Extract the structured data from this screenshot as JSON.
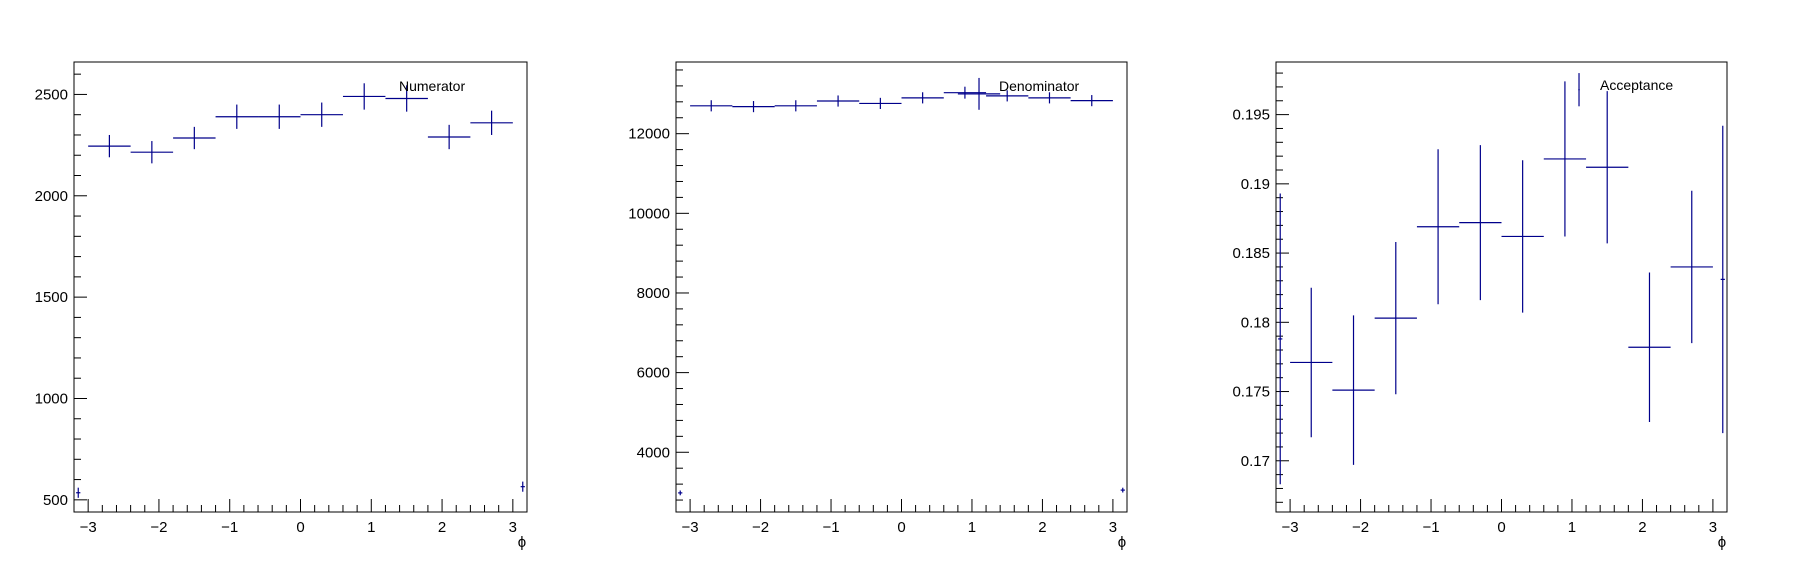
{
  "colors": {
    "marker": "#00008b",
    "frame": "#000000",
    "background": "#ffffff"
  },
  "chart_data": [
    {
      "type": "scatter",
      "title": "",
      "legend": "Numerator",
      "legend_position": "top-right",
      "xlabel": "ϕ",
      "ylabel": "",
      "grid": false,
      "xlim": [
        -3.2,
        3.2
      ],
      "ylim": [
        440,
        2660
      ],
      "x_ticks": [
        -3,
        -2,
        -1,
        0,
        1,
        2,
        3
      ],
      "x_tick_labels": [
        "−3",
        "−2",
        "−1",
        "0",
        "1",
        "2",
        "3"
      ],
      "y_ticks": [
        500,
        1000,
        1500,
        2000,
        2500
      ],
      "y_tick_labels": [
        "500",
        "1000",
        "1500",
        "2000",
        "2500"
      ],
      "points": [
        {
          "x": -3.14,
          "xerr": 0.03,
          "y": 535,
          "yerr": 25
        },
        {
          "x": -2.7,
          "xerr": 0.3,
          "y": 2245,
          "yerr": 55
        },
        {
          "x": -2.1,
          "xerr": 0.3,
          "y": 2215,
          "yerr": 55
        },
        {
          "x": -1.5,
          "xerr": 0.3,
          "y": 2285,
          "yerr": 55
        },
        {
          "x": -0.9,
          "xerr": 0.3,
          "y": 2390,
          "yerr": 60
        },
        {
          "x": -0.3,
          "xerr": 0.3,
          "y": 2390,
          "yerr": 60
        },
        {
          "x": 0.3,
          "xerr": 0.3,
          "y": 2400,
          "yerr": 60
        },
        {
          "x": 0.9,
          "xerr": 0.3,
          "y": 2490,
          "yerr": 65
        },
        {
          "x": 1.5,
          "xerr": 0.3,
          "y": 2480,
          "yerr": 65
        },
        {
          "x": 2.1,
          "xerr": 0.3,
          "y": 2290,
          "yerr": 60
        },
        {
          "x": 2.7,
          "xerr": 0.3,
          "y": 2360,
          "yerr": 60
        },
        {
          "x": 3.14,
          "xerr": 0.03,
          "y": 565,
          "yerr": 25
        }
      ]
    },
    {
      "type": "scatter",
      "title": "",
      "legend": "Denominator",
      "legend_position": "top-right",
      "xlabel": "ϕ",
      "ylabel": "",
      "grid": false,
      "xlim": [
        -3.2,
        3.2
      ],
      "ylim": [
        2500,
        13800
      ],
      "x_ticks": [
        -3,
        -2,
        -1,
        0,
        1,
        2,
        3
      ],
      "x_tick_labels": [
        "−3",
        "−2",
        "−1",
        "0",
        "1",
        "2",
        "3"
      ],
      "y_ticks": [
        4000,
        6000,
        8000,
        10000,
        12000
      ],
      "y_tick_labels": [
        "4000",
        "6000",
        "8000",
        "10000",
        "12000"
      ],
      "points": [
        {
          "x": -3.14,
          "xerr": 0.03,
          "y": 2980,
          "yerr": 60
        },
        {
          "x": -2.7,
          "xerr": 0.3,
          "y": 12700,
          "yerr": 140
        },
        {
          "x": -2.1,
          "xerr": 0.3,
          "y": 12680,
          "yerr": 140
        },
        {
          "x": -1.5,
          "xerr": 0.3,
          "y": 12700,
          "yerr": 140
        },
        {
          "x": -0.9,
          "xerr": 0.3,
          "y": 12820,
          "yerr": 140
        },
        {
          "x": -0.3,
          "xerr": 0.3,
          "y": 12760,
          "yerr": 140
        },
        {
          "x": 0.3,
          "xerr": 0.3,
          "y": 12900,
          "yerr": 140
        },
        {
          "x": 0.9,
          "xerr": 0.3,
          "y": 13030,
          "yerr": 150
        },
        {
          "x": 1.1,
          "xerr": 0.3,
          "y": 13000,
          "yerr": 400
        },
        {
          "x": 1.5,
          "xerr": 0.3,
          "y": 12950,
          "yerr": 140
        },
        {
          "x": 2.1,
          "xerr": 0.3,
          "y": 12900,
          "yerr": 140
        },
        {
          "x": 2.7,
          "xerr": 0.3,
          "y": 12830,
          "yerr": 140
        },
        {
          "x": 3.14,
          "xerr": 0.03,
          "y": 3050,
          "yerr": 60
        }
      ]
    },
    {
      "type": "scatter",
      "title": "",
      "legend": "Acceptance",
      "legend_position": "top-right",
      "xlabel": "ϕ",
      "ylabel": "",
      "grid": false,
      "xlim": [
        -3.2,
        3.2
      ],
      "ylim": [
        0.1663,
        0.1988
      ],
      "x_ticks": [
        -3,
        -2,
        -1,
        0,
        1,
        2,
        3
      ],
      "x_tick_labels": [
        "−3",
        "−2",
        "−1",
        "0",
        "1",
        "2",
        "3"
      ],
      "y_ticks": [
        0.17,
        0.175,
        0.18,
        0.185,
        0.19,
        0.195
      ],
      "y_tick_labels": [
        "0.17",
        "0.175",
        "0.18",
        "0.185",
        "0.19",
        "0.195"
      ],
      "points": [
        {
          "x": -3.14,
          "xerr": 0.03,
          "y": 0.1788,
          "yerr": 0.0105
        },
        {
          "x": -2.7,
          "xerr": 0.3,
          "y": 0.1771,
          "yerr": 0.0054
        },
        {
          "x": -2.1,
          "xerr": 0.3,
          "y": 0.1751,
          "yerr": 0.0054
        },
        {
          "x": -1.5,
          "xerr": 0.3,
          "y": 0.1803,
          "yerr": 0.0055
        },
        {
          "x": -0.9,
          "xerr": 0.3,
          "y": 0.1869,
          "yerr": 0.0056
        },
        {
          "x": -0.3,
          "xerr": 0.3,
          "y": 0.1872,
          "yerr": 0.0056
        },
        {
          "x": 0.3,
          "xerr": 0.3,
          "y": 0.1862,
          "yerr": 0.0055
        },
        {
          "x": 0.9,
          "xerr": 0.3,
          "y": 0.1918,
          "yerr": 0.0056
        },
        {
          "x": 1.1,
          "xerr": 0.01,
          "y": 0.1968,
          "yerr": 0.0012
        },
        {
          "x": 1.5,
          "xerr": 0.3,
          "y": 0.1912,
          "yerr": 0.0055
        },
        {
          "x": 2.1,
          "xerr": 0.3,
          "y": 0.1782,
          "yerr": 0.0054
        },
        {
          "x": 2.7,
          "xerr": 0.3,
          "y": 0.184,
          "yerr": 0.0055
        },
        {
          "x": 3.14,
          "xerr": 0.03,
          "y": 0.1831,
          "yerr": 0.0111
        }
      ]
    }
  ]
}
